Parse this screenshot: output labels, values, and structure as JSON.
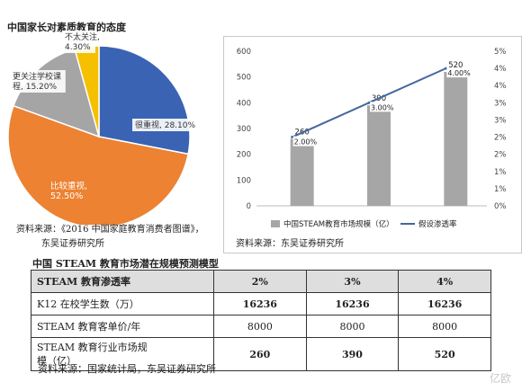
{
  "pie": {
    "title": "中国家长对素质教育的态度",
    "source": "资料来源：《2016 中国家庭教育消费者图谱》，",
    "source2": "东吴证券研究所"
  },
  "bar": {
    "legend_bar": "中国STEAM教育市场规模（亿）",
    "legend_line": "假设渗透率",
    "source": "资料来源：东吴证券研究所"
  },
  "table": {
    "title": "中国 STEAM 教育市场潜在规模预测模型",
    "header": [
      "STEAM 教育渗透率",
      "2%",
      "3%",
      "4%"
    ],
    "rows": [
      [
        "K12 在校学生数（万）",
        "16236",
        "16236",
        "16236"
      ],
      [
        "STEAM 教育客单价/年",
        "8000",
        "8000",
        "8000"
      ],
      [
        "STEAM 教育行业市场规模（亿）",
        "260",
        "390",
        "520"
      ]
    ],
    "row3_label_line1": "STEAM 教育行业市场规",
    "row3_label_line2": "模（亿）",
    "source": "资料来源：国家统计局，东吴证券研究所"
  },
  "watermark": "亿欧",
  "chart_data": [
    {
      "type": "pie",
      "title": "中国家长对素质教育的态度",
      "slices": [
        {
          "label": "很重视",
          "value": 28.1,
          "text": "很重视, 28.10%",
          "color": "#3a63b4"
        },
        {
          "label": "比较重视",
          "value": 52.5,
          "text": "比较重视,\n52.50%",
          "color": "#ec8232"
        },
        {
          "label": "更关注学校课程",
          "value": 15.2,
          "text": "更关注学校课\n程, 15.20%",
          "color": "#a5a5a5"
        },
        {
          "label": "不太关注",
          "value": 4.3,
          "text": "不太关注,\n4.30%",
          "color": "#f5c000"
        }
      ]
    },
    {
      "type": "bar",
      "categories": [
        "2%",
        "3%",
        "4%"
      ],
      "series": [
        {
          "name": "中国STEAM教育市场规模（亿）",
          "type": "bar",
          "axis": "left",
          "values": [
            260,
            390,
            520
          ],
          "labels": [
            "260",
            "390",
            "520"
          ],
          "color": "#a6a6a6"
        },
        {
          "name": "假设渗透率",
          "type": "line",
          "axis": "right",
          "values": [
            2.0,
            3.0,
            4.0
          ],
          "labels": [
            "2.00%",
            "3.00%",
            "4.00%"
          ],
          "color": "#44679f"
        }
      ],
      "yleft": {
        "min": 0,
        "max": 600,
        "ticks": [
          "0",
          "100",
          "200",
          "300",
          "400",
          "500",
          "600"
        ]
      },
      "yright": {
        "min": 0,
        "max": 4.5,
        "ticks": [
          "0%",
          "1%",
          "1%",
          "2%",
          "2%",
          "3%",
          "3%",
          "4%",
          "4%",
          "5%"
        ]
      },
      "grid": false
    }
  ]
}
